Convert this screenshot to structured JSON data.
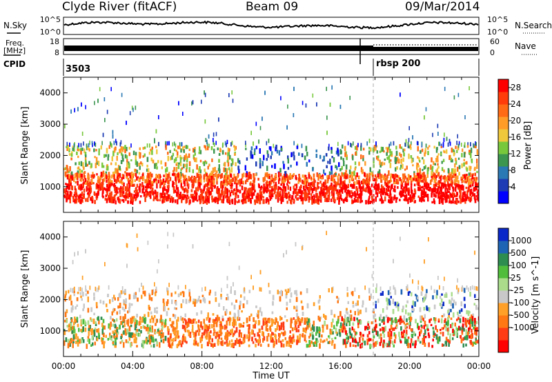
{
  "header": {
    "station": "Clyde River (fitACF)",
    "beam": "Beam 09",
    "date": "09/Mar/2014"
  },
  "status_panels": {
    "nsky_label": "N.Sky",
    "nsearch_label": "N.Search",
    "freq_label": "Freq.",
    "freq_unit": "[MHz]",
    "nave_label": "Nave",
    "cpid_label": "CPID",
    "nsky_ticks": [
      "10^5",
      "10^0"
    ],
    "nsearch_ticks": [
      "10^5",
      "10^0"
    ],
    "freq_ticks": [
      "18",
      "8"
    ],
    "nave_ticks": [
      "60",
      "0"
    ],
    "cpid_segments": [
      {
        "label": "3503",
        "start": 0
      },
      {
        "label": "rbsp 200",
        "start": 18
      }
    ]
  },
  "colors": {
    "power": [
      "#0000ff",
      "#1e3cb4",
      "#2a78b4",
      "#3c9650",
      "#78c83c",
      "#f0c83c",
      "#ff9c28",
      "#ff6a14",
      "#ff3c0a",
      "#ff0000"
    ],
    "velocity": [
      "#ff0000",
      "#ff3c14",
      "#ff7814",
      "#ffa028",
      "#c8c8c8",
      "#aadc8c",
      "#50be3c",
      "#2d8c50",
      "#1e64b4",
      "#0a28c8"
    ]
  },
  "chart_data": [
    {
      "type": "heatmap",
      "panel": "power",
      "xlabel": "Time UT",
      "ylabel": "Slant Range [km]",
      "x_ticks": [
        "00:00",
        "04:00",
        "08:00",
        "12:00",
        "16:00",
        "20:00",
        "00:00"
      ],
      "x_range_hours": [
        0,
        24
      ],
      "y_ticks": [
        1000,
        2000,
        3000,
        4000
      ],
      "y_range_km": [
        180,
        4500
      ],
      "colorbar_label": "Power [dB]",
      "colorbar_ticks": [
        4,
        8,
        12,
        16,
        20,
        24,
        28
      ],
      "colorbar_range": [
        0,
        30
      ],
      "scatter_bands": [
        {
          "t": [
            0,
            24
          ],
          "range_km": [
            500,
            1300
          ],
          "value": "28+"
        },
        {
          "t": [
            0,
            10
          ],
          "range_km": [
            1300,
            2300
          ],
          "value": "12-24"
        },
        {
          "t": [
            10,
            16
          ],
          "range_km": [
            1200,
            2700
          ],
          "value": "4-12"
        },
        {
          "t": [
            16,
            24
          ],
          "range_km": [
            1200,
            2000
          ],
          "value": "16-24"
        }
      ]
    },
    {
      "type": "heatmap",
      "panel": "velocity",
      "xlabel": "Time UT",
      "ylabel": "Slant Range [km]",
      "x_ticks": [
        "00:00",
        "04:00",
        "08:00",
        "12:00",
        "16:00",
        "20:00",
        "00:00"
      ],
      "x_range_hours": [
        0,
        24
      ],
      "y_ticks": [
        1000,
        2000,
        3000,
        4000
      ],
      "y_range_km": [
        180,
        4500
      ],
      "colorbar_label": "Velocity [m s^-1]",
      "colorbar_ticks": [
        "1000",
        "500",
        "100",
        "25",
        "-25",
        "-100",
        "-500",
        "-1000"
      ],
      "scatter_bands": [
        {
          "t": [
            0,
            10
          ],
          "range_km": [
            400,
            1500
          ],
          "value": "-25 to -100 / 25 to 100"
        },
        {
          "t": [
            6,
            14
          ],
          "range_km": [
            600,
            1400
          ],
          "value": "-100 to -500"
        },
        {
          "t": [
            16,
            24
          ],
          "range_km": [
            500,
            1300
          ],
          "value": "-500 to -1000"
        },
        {
          "t": [
            0,
            24
          ],
          "range_km": [
            1500,
            2300
          ],
          "value": "-25 to 25"
        }
      ]
    }
  ]
}
